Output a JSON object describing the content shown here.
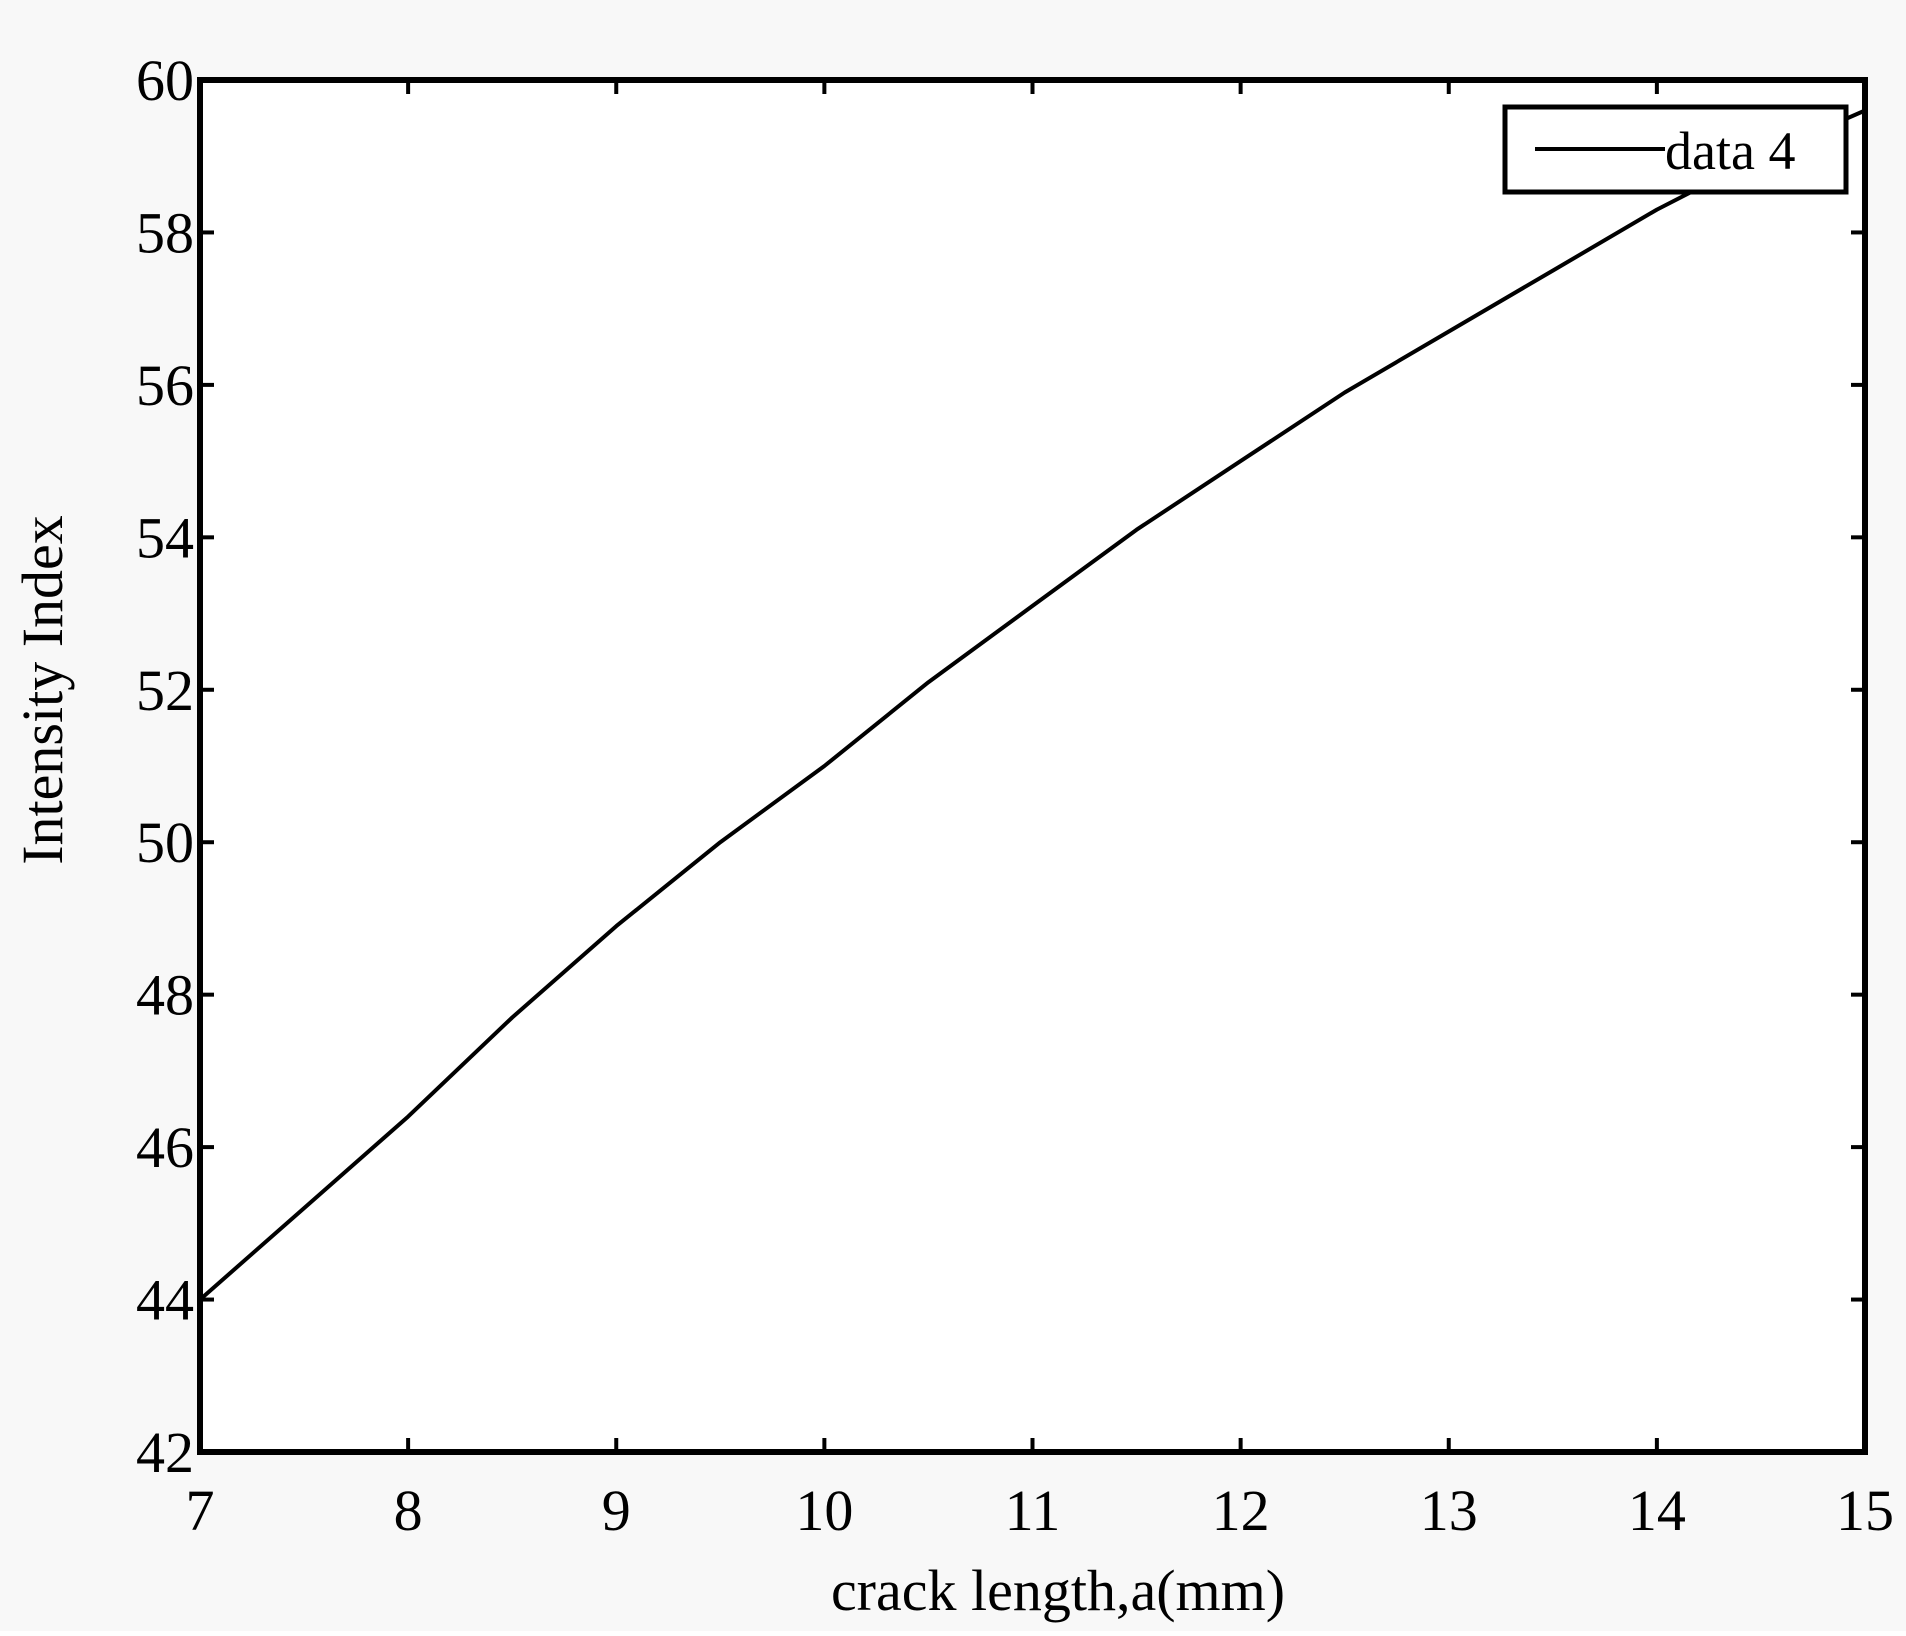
{
  "chart_data": {
    "type": "line",
    "title": "",
    "xlabel": "crack length,a(mm)",
    "ylabel": "Intensity Index",
    "xlim": [
      7,
      15
    ],
    "ylim": [
      42,
      60
    ],
    "xticks": [
      7,
      8,
      9,
      10,
      11,
      12,
      13,
      14,
      15
    ],
    "yticks": [
      42,
      44,
      46,
      48,
      50,
      52,
      54,
      56,
      58,
      60
    ],
    "grid": false,
    "legend": {
      "placement": "top-right",
      "entries": [
        "data 4"
      ]
    },
    "series": [
      {
        "name": "data 4",
        "color": "#000000",
        "x": [
          7.0,
          7.5,
          8.0,
          8.5,
          9.0,
          9.5,
          10.0,
          10.5,
          11.0,
          11.5,
          12.0,
          12.5,
          13.0,
          13.5,
          14.0,
          14.5,
          15.0
        ],
        "y": [
          44.0,
          45.2,
          46.4,
          47.7,
          48.9,
          50.0,
          51.0,
          52.1,
          53.1,
          54.1,
          55.0,
          55.9,
          56.7,
          57.5,
          58.3,
          59.0,
          59.6
        ]
      }
    ]
  }
}
